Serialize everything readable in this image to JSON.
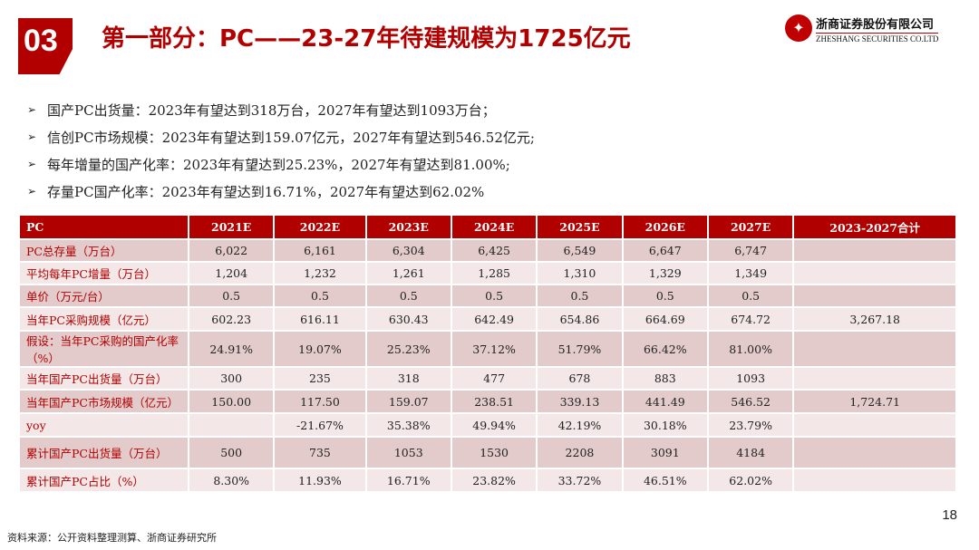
{
  "header": {
    "section_number": "03",
    "title": "第一部分：PC——23-27年待建规模为1725亿元",
    "logo_cn": "浙商证券股份有限公司",
    "logo_en": "ZHESHANG SECURITIES CO.LTD",
    "logo_color": "#c00000"
  },
  "bullets": [
    "国产PC出货量：2023年有望达到318万台，2027年有望达到1093万台；",
    "信创PC市场规模：2023年有望达到159.07亿元，2027年有望达到546.52亿元;",
    "每年增量的国产化率：2023年有望达到25.23%，2027年有望达到81.00%;",
    "存量PC国产化率：2023年有望达到16.71%，2027年有望达到62.02%"
  ],
  "table": {
    "headers": [
      "PC",
      "2021E",
      "2022E",
      "2023E",
      "2024E",
      "2025E",
      "2026E",
      "2027E",
      "2023-2027合计"
    ],
    "rows": [
      [
        "PC总存量（万台）",
        "6,022",
        "6,161",
        "6,304",
        "6,425",
        "6,549",
        "6,647",
        "6,747",
        ""
      ],
      [
        "平均每年PC增量（万台）",
        "1,204",
        "1,232",
        "1,261",
        "1,285",
        "1,310",
        "1,329",
        "1,349",
        ""
      ],
      [
        "单价（万元/台）",
        "0.5",
        "0.5",
        "0.5",
        "0.5",
        "0.5",
        "0.5",
        "0.5",
        ""
      ],
      [
        "当年PC采购规模（亿元）",
        "602.23",
        "616.11",
        "630.43",
        "642.49",
        "654.86",
        "664.69",
        "674.72",
        "3,267.18"
      ],
      [
        "假设：当年PC采购的国产化率（%）",
        "24.91%",
        "19.07%",
        "25.23%",
        "37.12%",
        "51.79%",
        "66.42%",
        "81.00%",
        ""
      ],
      [
        "当年国产PC出货量（万台）",
        "300",
        "235",
        "318",
        "477",
        "678",
        "883",
        "1093",
        ""
      ],
      [
        "当年国产PC市场规模（亿元）",
        "150.00",
        "117.50",
        "159.07",
        "238.51",
        "339.13",
        "441.49",
        "546.52",
        "1,724.71"
      ],
      [
        "yoy",
        "",
        "-21.67%",
        "35.38%",
        "49.94%",
        "42.19%",
        "30.18%",
        "23.79%",
        ""
      ],
      [
        "累计国产PC出货量（万台）",
        "500",
        "735",
        "1053",
        "1530",
        "2208",
        "3091",
        "4184",
        ""
      ],
      [
        "累计国产PC占比（%）",
        "8.30%",
        "11.93%",
        "16.71%",
        "23.82%",
        "33.72%",
        "46.51%",
        "62.02%",
        ""
      ]
    ]
  },
  "footer": {
    "source": "资料来源：公开资料整理测算、浙商证券研究所",
    "page": "18"
  }
}
